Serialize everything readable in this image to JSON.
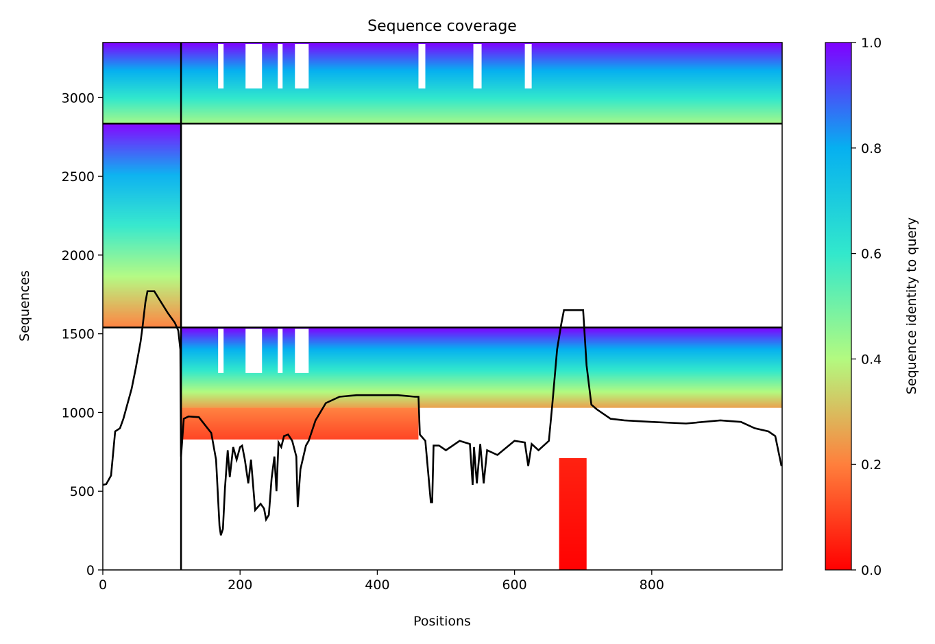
{
  "chart_data": {
    "type": "heatmap",
    "title": "Sequence coverage",
    "xlabel": "Positions",
    "ylabel": "Sequences",
    "xlim": [
      0,
      990
    ],
    "ylim": [
      0,
      3350
    ],
    "x_ticks": [
      0,
      200,
      400,
      600,
      800
    ],
    "y_ticks": [
      0,
      500,
      1000,
      1500,
      2000,
      2500,
      3000
    ],
    "grid": false,
    "colorbar": {
      "label": "Sequence identity to query",
      "colormap": "rainbow_r",
      "range": [
        0.0,
        1.0
      ],
      "ticks": [
        "0.0",
        "0.2",
        "0.4",
        "0.6",
        "0.8",
        "1.0"
      ]
    },
    "block_boundaries": {
      "vertical_x": 114,
      "horizontal_y": [
        1540,
        2835
      ]
    },
    "blocks": [
      {
        "x": [
          0,
          990
        ],
        "y": [
          2835,
          3350
        ],
        "identity_range": [
          0.42,
          1.0
        ],
        "gap_x": [
          [
            168,
            176
          ],
          [
            208,
            232
          ],
          [
            255,
            262
          ],
          [
            280,
            300
          ],
          [
            460,
            470
          ],
          [
            540,
            552
          ],
          [
            615,
            625
          ]
        ]
      },
      {
        "x": [
          0,
          114
        ],
        "y": [
          1540,
          2835
        ],
        "identity_range": [
          0.2,
          1.0
        ],
        "gap_x": []
      },
      {
        "x": [
          114,
          990
        ],
        "y": [
          1030,
          1540
        ],
        "identity_range": [
          0.25,
          1.0
        ],
        "gap_x": [
          [
            168,
            176
          ],
          [
            208,
            232
          ],
          [
            255,
            262
          ],
          [
            280,
            300
          ]
        ]
      },
      {
        "x": [
          114,
          460
        ],
        "y": [
          830,
          1030
        ],
        "identity_range": [
          0.1,
          0.2
        ],
        "gap_x": []
      },
      {
        "x": [
          665,
          705
        ],
        "y": [
          0,
          710
        ],
        "identity_range": [
          0.0,
          0.05
        ],
        "gap_x": []
      }
    ],
    "coverage_line": {
      "name": "coverage",
      "x": [
        0,
        5,
        12,
        18,
        25,
        30,
        35,
        42,
        48,
        55,
        58,
        62,
        65,
        75,
        85,
        95,
        105,
        110,
        113,
        114,
        118,
        125,
        140,
        158,
        165,
        170,
        172,
        175,
        178,
        182,
        185,
        190,
        195,
        200,
        203,
        207,
        212,
        216,
        222,
        230,
        235,
        238,
        242,
        246,
        250,
        253,
        256,
        260,
        264,
        270,
        276,
        282,
        284,
        288,
        296,
        300,
        310,
        325,
        345,
        370,
        400,
        430,
        455,
        460,
        462,
        470,
        478,
        480,
        482,
        490,
        500,
        520,
        535,
        539,
        541,
        545,
        550,
        555,
        560,
        575,
        600,
        615,
        620,
        625,
        635,
        650,
        655,
        662,
        668,
        672,
        678,
        683,
        700,
        705,
        712,
        720,
        740,
        760,
        800,
        850,
        900,
        930,
        950,
        970,
        980,
        989
      ],
      "y": [
        540,
        545,
        600,
        880,
        900,
        960,
        1040,
        1150,
        1280,
        1450,
        1550,
        1700,
        1770,
        1770,
        1700,
        1630,
        1570,
        1520,
        1400,
        720,
        960,
        975,
        970,
        870,
        700,
        280,
        220,
        260,
        520,
        760,
        590,
        780,
        700,
        780,
        790,
        700,
        550,
        700,
        380,
        420,
        390,
        320,
        350,
        580,
        720,
        500,
        810,
        780,
        850,
        860,
        820,
        720,
        400,
        640,
        790,
        820,
        950,
        1060,
        1100,
        1110,
        1110,
        1110,
        1100,
        1100,
        860,
        820,
        430,
        430,
        790,
        790,
        760,
        820,
        800,
        540,
        780,
        550,
        800,
        550,
        760,
        730,
        820,
        810,
        660,
        800,
        760,
        820,
        1050,
        1400,
        1560,
        1650,
        1650,
        1650,
        1650,
        1300,
        1050,
        1020,
        960,
        950,
        940,
        930,
        950,
        940,
        900,
        880,
        850,
        660
      ]
    }
  }
}
